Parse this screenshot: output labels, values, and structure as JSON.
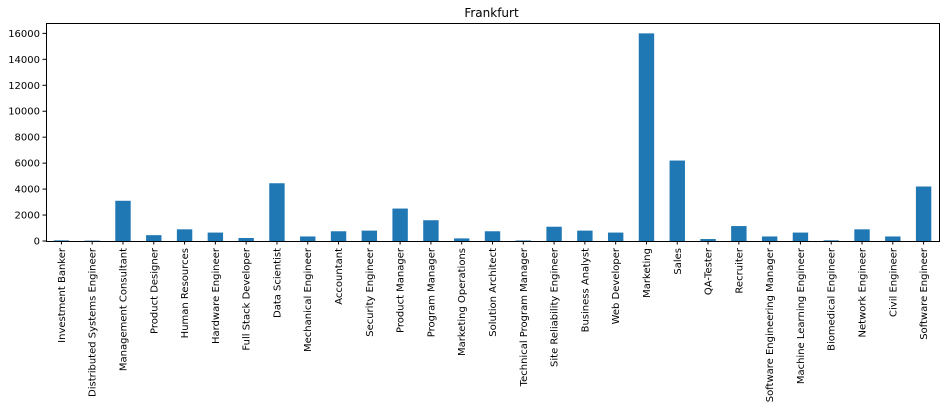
{
  "chart_data": {
    "type": "bar",
    "title": "Frankfurt",
    "xlabel": "",
    "ylabel": "",
    "ylim": [
      0,
      16800
    ],
    "yticks": [
      0,
      2000,
      4000,
      6000,
      8000,
      10000,
      12000,
      14000,
      16000
    ],
    "grid": false,
    "bar_color": "#1f77b4",
    "categories": [
      "Investment Banker",
      "Distributed Systems Engineer",
      "Management Consultant",
      "Product Designer",
      "Human Resources",
      "Hardware Engineer",
      "Full Stack Developer",
      "Data Scientist",
      "Mechanical Engineer",
      "Accountant",
      "Security Engineer",
      "Product Manager",
      "Program Manager",
      "Marketing Operations",
      "Solution Architect",
      "Technical Program Manager",
      "Site Reliability Engineer",
      "Business Analyst",
      "Web Developer",
      "Marketing",
      "Sales",
      "QA-Tester",
      "Recruiter",
      "Software Engineering Manager",
      "Machine Learning Engineer",
      "Biomedical Engineer",
      "Network Engineer",
      "Civil Engineer",
      "Software Engineer"
    ],
    "values": [
      50,
      30,
      3100,
      450,
      900,
      650,
      230,
      4450,
      350,
      750,
      800,
      2500,
      1600,
      200,
      750,
      40,
      1100,
      800,
      650,
      16000,
      6200,
      150,
      1150,
      350,
      650,
      50,
      900,
      350,
      4200
    ]
  }
}
